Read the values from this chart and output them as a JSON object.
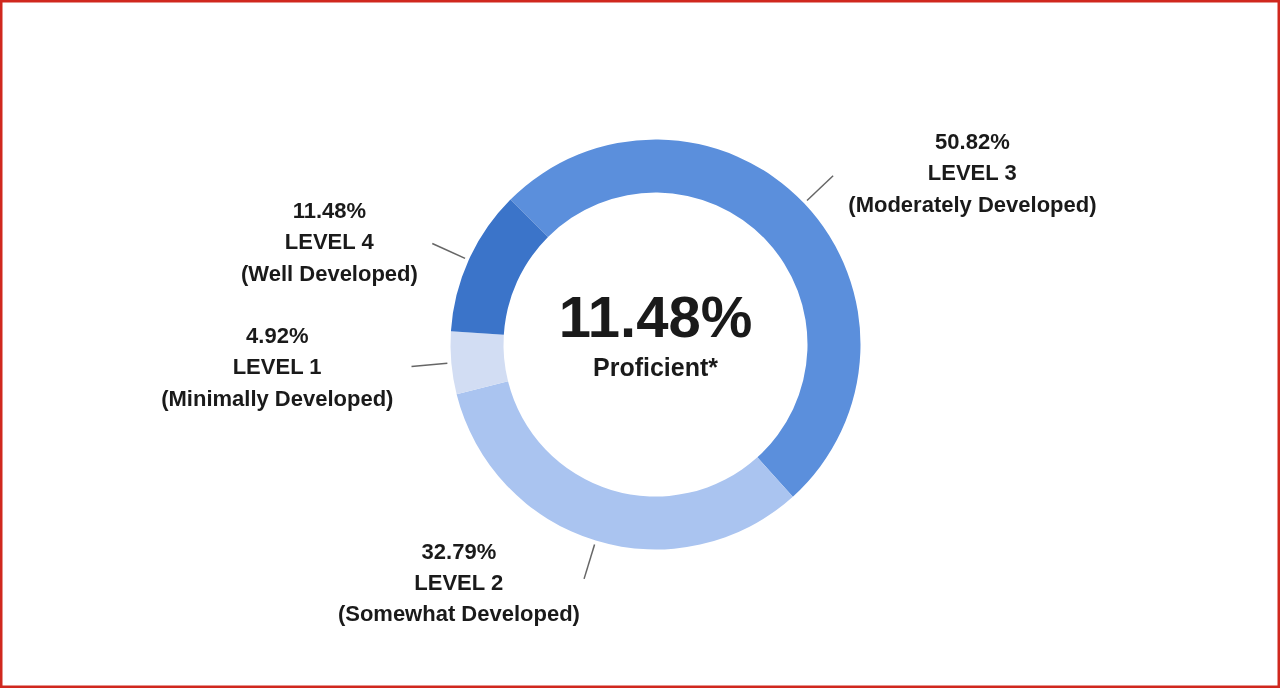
{
  "chart_data": {
    "type": "donut",
    "categories": [
      "LEVEL 3\n(Moderately Developed)",
      "LEVEL 2\n(Somewhat Developed)",
      "LEVEL 1\n(Minimally Developed)",
      "LEVEL 4\n(Well Developed)"
    ],
    "values": [
      50.82,
      32.79,
      4.92,
      11.48
    ],
    "value_labels": [
      "50.82%",
      "32.79%",
      "4.92%",
      "11.48%"
    ],
    "colors": [
      "#5b8fdc",
      "#aac4f0",
      "#d2ddf3",
      "#3b74c9"
    ],
    "annotations": [
      "11.48%",
      "Proficient*"
    ]
  }
}
